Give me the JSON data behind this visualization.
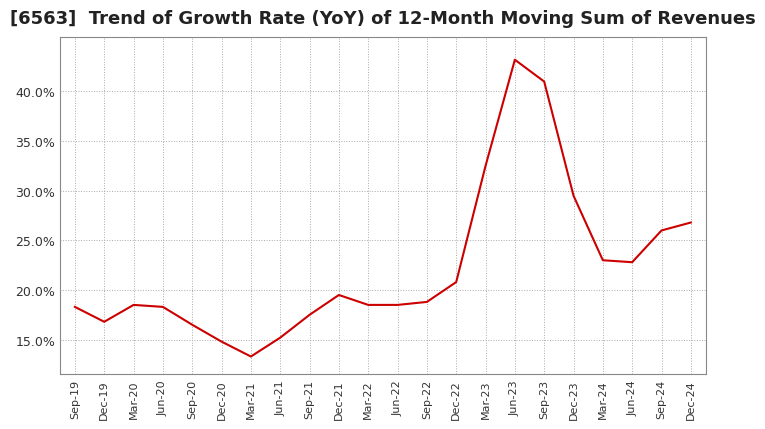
{
  "title": "[6563]  Trend of Growth Rate (YoY) of 12-Month Moving Sum of Revenues",
  "title_fontsize": 13,
  "background_color": "#ffffff",
  "plot_bg_color": "#ffffff",
  "grid_color": "#aaaaaa",
  "line_color": "#cc0000",
  "x_labels": [
    "Sep-19",
    "Dec-19",
    "Mar-20",
    "Jun-20",
    "Sep-20",
    "Dec-20",
    "Mar-21",
    "Jun-21",
    "Sep-21",
    "Dec-21",
    "Mar-22",
    "Jun-22",
    "Sep-22",
    "Dec-22",
    "Mar-23",
    "Jun-23",
    "Sep-23",
    "Dec-23",
    "Mar-24",
    "Jun-24",
    "Sep-24",
    "Dec-24"
  ],
  "y_values": [
    0.183,
    0.168,
    0.185,
    0.183,
    0.165,
    0.148,
    0.133,
    0.152,
    0.175,
    0.195,
    0.185,
    0.185,
    0.188,
    0.208,
    0.325,
    0.432,
    0.41,
    0.295,
    0.23,
    0.228,
    0.26,
    0.268
  ],
  "ylim_min": 0.115,
  "ylim_max": 0.455,
  "yticks": [
    0.15,
    0.2,
    0.25,
    0.3,
    0.35,
    0.4
  ],
  "ytick_labels": [
    "15.0%",
    "20.0%",
    "25.0%",
    "30.0%",
    "35.0%",
    "40.0%"
  ],
  "tick_fontsize": 9,
  "xlabel_fontsize": 8
}
